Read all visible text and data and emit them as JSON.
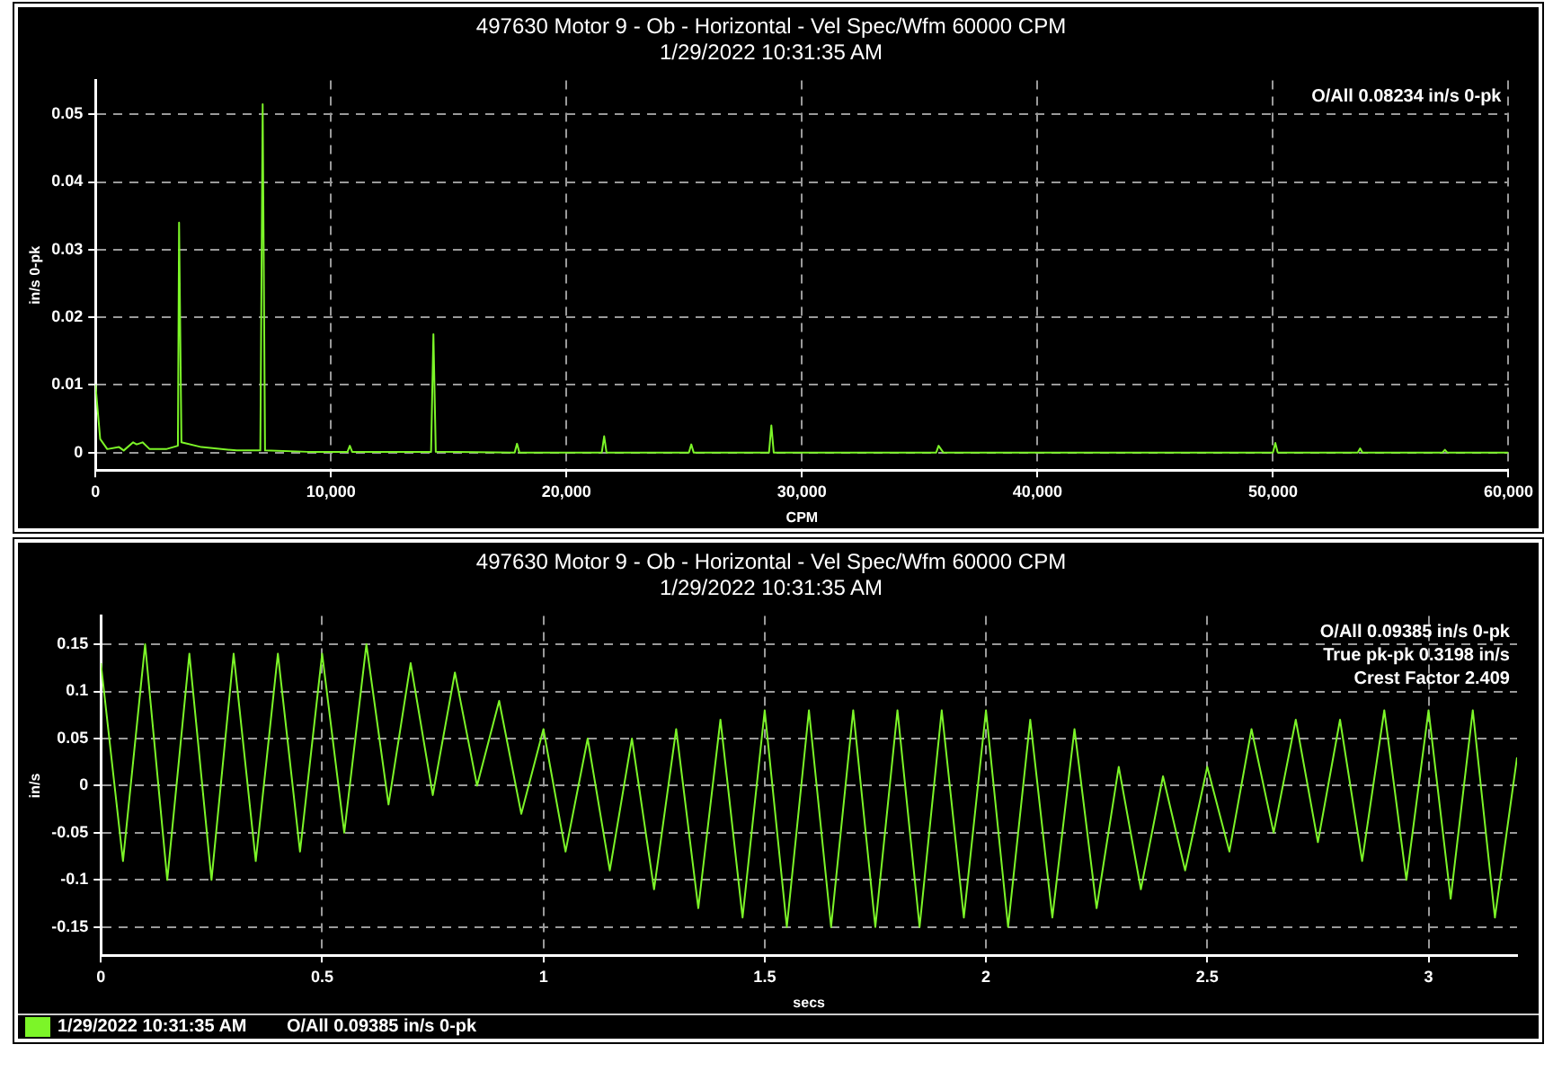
{
  "chart_data": [
    {
      "type": "line",
      "title": "497630 Motor 9 - Ob - Horizontal - Vel Spec/Wfm 60000 CPM",
      "subtitle": "1/29/2022 10:31:35 AM",
      "xlabel": "CPM",
      "ylabel": "in/s 0-pk",
      "x": [
        0,
        200,
        500,
        1000,
        1200,
        1600,
        1750,
        2000,
        2300,
        3000,
        3500,
        3550,
        3650,
        4500,
        6000,
        7000,
        7100,
        7200,
        9000,
        10700,
        10800,
        10900,
        14250,
        14350,
        14450,
        17800,
        17900,
        18000,
        21500,
        21600,
        21700,
        25200,
        25300,
        25400,
        28600,
        28700,
        28800,
        35700,
        35800,
        35900,
        36000,
        50000,
        50100,
        50200,
        53600,
        53700,
        53800,
        57200,
        57300,
        57400,
        60000
      ],
      "series": [
        {
          "color": "#7cf528",
          "values": [
            0.01,
            0.002,
            0.0005,
            0.0008,
            0.0003,
            0.0015,
            0.0012,
            0.0015,
            0.0005,
            0.0005,
            0.001,
            0.034,
            0.0015,
            0.0008,
            0.0003,
            0.0003,
            0.0515,
            0.0003,
            0.0001,
            0.0001,
            0.001,
            0.0001,
            0.0001,
            0.0175,
            0.0001,
            0,
            0.0013,
            0,
            0,
            0.0024,
            0,
            0,
            0.0012,
            0,
            0,
            0.004,
            0,
            0,
            0.001,
            0.0005,
            0,
            0,
            0.0014,
            0,
            0,
            0.0006,
            0,
            0,
            0.0004,
            0,
            0
          ]
        }
      ],
      "xlim": [
        0,
        60000
      ],
      "xticks": [
        0,
        {
          "value": 10000,
          "label": "10,000"
        },
        {
          "value": 20000,
          "label": "20,000"
        },
        {
          "value": 30000,
          "label": "30,000"
        },
        {
          "value": 40000,
          "label": "40,000"
        },
        {
          "value": 50000,
          "label": "50,000"
        },
        {
          "value": 60000,
          "label": "60,000"
        }
      ],
      "ylim": [
        -0.0026,
        0.055
      ],
      "yticks": [
        0,
        0.01,
        0.02,
        0.03,
        0.04,
        0.05
      ],
      "grid": true,
      "annotations": [
        "O/All 0.08234 in/s 0-pk"
      ]
    },
    {
      "type": "line",
      "title": "497630 Motor 9 - Ob - Horizontal - Vel Spec/Wfm 60000 CPM",
      "subtitle": "1/29/2022 10:31:35 AM",
      "xlabel": "secs",
      "ylabel": "in/s",
      "x": [
        0,
        0.05,
        0.1,
        0.15,
        0.2,
        0.25,
        0.3,
        0.35,
        0.4,
        0.45,
        0.5,
        0.55,
        0.6,
        0.65,
        0.7,
        0.75,
        0.8,
        0.85,
        0.9,
        0.95,
        1.0,
        1.05,
        1.1,
        1.15,
        1.2,
        1.25,
        1.3,
        1.35,
        1.4,
        1.45,
        1.5,
        1.55,
        1.6,
        1.65,
        1.7,
        1.75,
        1.8,
        1.85,
        1.9,
        1.95,
        2.0,
        2.05,
        2.1,
        2.15,
        2.2,
        2.25,
        2.3,
        2.35,
        2.4,
        2.45,
        2.5,
        2.55,
        2.6,
        2.65,
        2.7,
        2.75,
        2.8,
        2.85,
        2.9,
        2.95,
        3.0,
        3.05,
        3.1,
        3.15,
        3.2
      ],
      "series": [
        {
          "name": "1/29/2022 10:31:35 AM        O/All 0.09385 in/s 0-pk",
          "color": "#7cf528",
          "values": [
            0.13,
            -0.08,
            0.15,
            -0.1,
            0.14,
            -0.1,
            0.14,
            -0.08,
            0.14,
            -0.07,
            0.14,
            -0.05,
            0.15,
            -0.02,
            0.13,
            -0.01,
            0.12,
            0,
            0.09,
            -0.03,
            0.06,
            -0.07,
            0.05,
            -0.09,
            0.05,
            -0.11,
            0.06,
            -0.13,
            0.07,
            -0.14,
            0.08,
            -0.15,
            0.08,
            -0.15,
            0.08,
            -0.15,
            0.08,
            -0.15,
            0.08,
            -0.14,
            0.08,
            -0.15,
            0.07,
            -0.14,
            0.06,
            -0.13,
            0.02,
            -0.11,
            0.01,
            -0.09,
            0.02,
            -0.07,
            0.06,
            -0.05,
            0.07,
            -0.06,
            0.07,
            -0.08,
            0.08,
            -0.1,
            0.08,
            -0.12,
            0.08,
            -0.14,
            0.03
          ]
        }
      ],
      "xlim": [
        0,
        3.2
      ],
      "xticks": [
        0,
        0.5,
        1,
        1.5,
        2,
        2.5,
        3
      ],
      "ylim": [
        -0.18,
        0.18
      ],
      "yticks": [
        -0.15,
        -0.1,
        -0.05,
        0,
        0.05,
        0.1,
        0.15
      ],
      "grid": true,
      "legend": "bottom",
      "annotations": [
        "O/All 0.09385 in/s 0-pk",
        "True pk-pk 0.3198 in/s",
        "Crest Factor 2.409"
      ]
    }
  ]
}
